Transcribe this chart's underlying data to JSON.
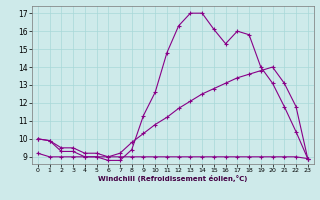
{
  "x": [
    0,
    1,
    2,
    3,
    4,
    5,
    6,
    7,
    8,
    9,
    10,
    11,
    12,
    13,
    14,
    15,
    16,
    17,
    18,
    19,
    20,
    21,
    22,
    23
  ],
  "curve1": [
    10.0,
    9.9,
    9.3,
    9.3,
    9.0,
    9.0,
    8.8,
    8.8,
    9.4,
    11.3,
    12.6,
    14.8,
    16.3,
    17.0,
    17.0,
    16.1,
    15.3,
    16.0,
    15.8,
    14.0,
    13.1,
    11.8,
    10.4,
    8.9
  ],
  "curve2": [
    10.0,
    9.9,
    9.5,
    9.5,
    9.2,
    9.2,
    9.0,
    9.2,
    9.8,
    10.3,
    10.8,
    11.2,
    11.7,
    12.1,
    12.5,
    12.8,
    13.1,
    13.4,
    13.6,
    13.8,
    14.0,
    13.1,
    11.8,
    8.9
  ],
  "curve3": [
    9.2,
    9.0,
    9.0,
    9.0,
    9.0,
    9.0,
    9.0,
    9.0,
    9.0,
    9.0,
    9.0,
    9.0,
    9.0,
    9.0,
    9.0,
    9.0,
    9.0,
    9.0,
    9.0,
    9.0,
    9.0,
    9.0,
    9.0,
    8.9
  ],
  "line_color": "#880088",
  "bg_color": "#ceeaea",
  "grid_color": "#a8d8d8",
  "xlabel": "Windchill (Refroidissement éolien,°C)",
  "ylim": [
    8.6,
    17.4
  ],
  "xlim": [
    -0.5,
    23.5
  ],
  "yticks": [
    9,
    10,
    11,
    12,
    13,
    14,
    15,
    16,
    17
  ],
  "xticks": [
    0,
    1,
    2,
    3,
    4,
    5,
    6,
    7,
    8,
    9,
    10,
    11,
    12,
    13,
    14,
    15,
    16,
    17,
    18,
    19,
    20,
    21,
    22,
    23
  ]
}
